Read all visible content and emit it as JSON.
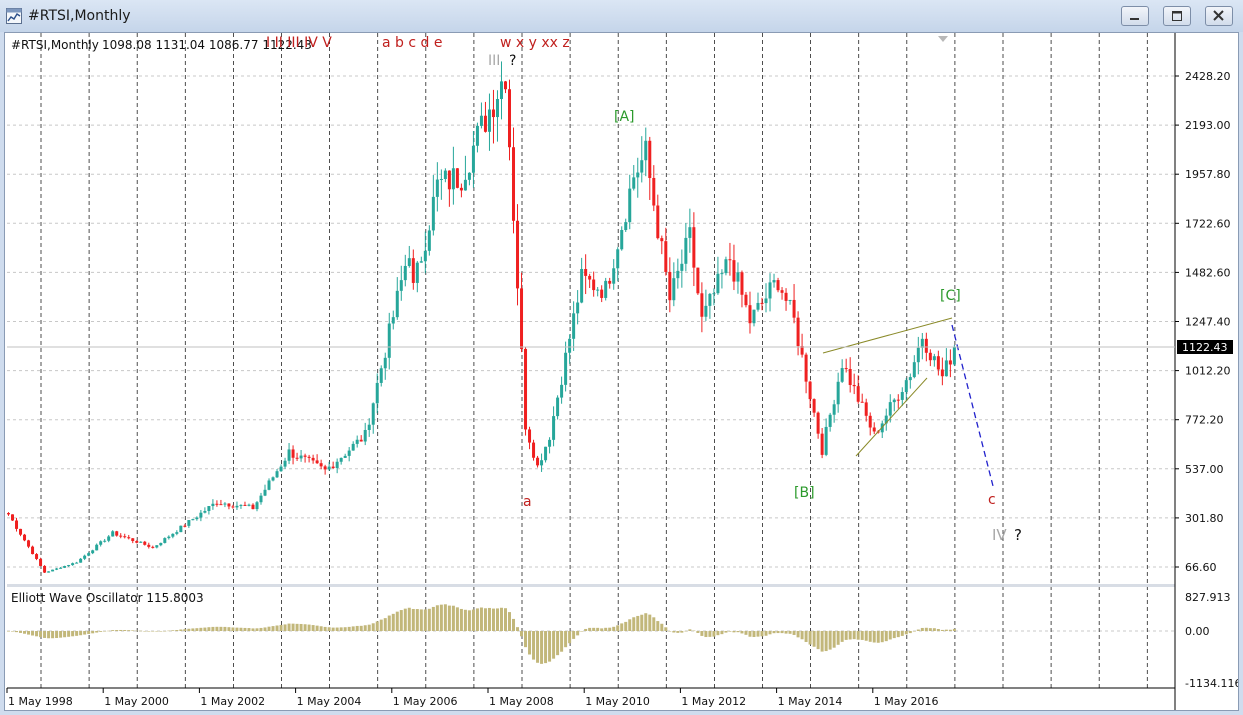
{
  "window": {
    "title": "#RTSI,Monthly",
    "buttons": [
      "minimize",
      "restore",
      "close"
    ]
  },
  "chart_info": {
    "symbol_period": "#RTSI,Monthly",
    "ohlc": "1098.08 1131.04 1086.77 1122.43",
    "current_price": "1122.43"
  },
  "price_axis": {
    "ticks": [
      "2428.20",
      "2193.00",
      "1957.80",
      "1722.60",
      "1482.60",
      "1247.40",
      "1012.20",
      "772.20",
      "537.00",
      "301.80",
      "66.60"
    ]
  },
  "indicator": {
    "label": "Elliott Wave Oscillator 115.8003",
    "ticks": [
      "827.913",
      "0.00",
      "-1134.116"
    ]
  },
  "time_axis": {
    "labels": [
      "1 May 1998",
      "1 May 2000",
      "1 May 2002",
      "1 May 2004",
      "1 May 2006",
      "1 May 2008",
      "1 May 2010",
      "1 May 2012",
      "1 May 2014",
      "1 May 2016"
    ]
  },
  "wave_labels": {
    "top_red_roman": "I II III IV V",
    "top_abcde": "a b c d e",
    "top_wxyxxz": "w x y xx z",
    "wave_III": "III",
    "question": "?",
    "wave_A": "[A]",
    "wave_B": "[B]",
    "wave_C": "[C]",
    "wave_a": "a",
    "wave_c": "c",
    "wave_IV": "IV",
    "question2": "?"
  },
  "colors": {
    "bull": "#26a69a",
    "bear": "#ef2020",
    "wave_green": "#2c9a2c",
    "wave_red": "#c0201e",
    "wave_gray": "#a8a8a8",
    "oscillator": "#c2b77a",
    "channel": "#8a8a28",
    "projection": "#2222cc"
  },
  "chart_data": {
    "type": "candlestick",
    "anchors": [
      [
        "1998-01",
        320
      ],
      [
        "1998-10",
        40
      ],
      [
        "1999-06",
        90
      ],
      [
        "2000-03",
        230
      ],
      [
        "2001-01",
        160
      ],
      [
        "2002-05",
        380
      ],
      [
        "2003-02",
        350
      ],
      [
        "2003-11",
        620
      ],
      [
        "2004-08",
        530
      ],
      [
        "2005-06",
        700
      ],
      [
        "2006-05",
        1600
      ],
      [
        "2006-06",
        1400
      ],
      [
        "2006-12",
        1900
      ],
      [
        "2007-06",
        1950
      ],
      [
        "2008-05",
        2450
      ],
      [
        "2008-10",
        750
      ],
      [
        "2009-01",
        550
      ],
      [
        "2009-04",
        700
      ],
      [
        "2009-12",
        1450
      ],
      [
        "2010-06",
        1400
      ],
      [
        "2011-01",
        1950
      ],
      [
        "2011-04",
        2050
      ],
      [
        "2011-10",
        1350
      ],
      [
        "2012-03",
        1650
      ],
      [
        "2012-06",
        1250
      ],
      [
        "2013-01",
        1550
      ],
      [
        "2013-06",
        1250
      ],
      [
        "2014-01",
        1450
      ],
      [
        "2014-05",
        1250
      ],
      [
        "2014-12",
        630
      ],
      [
        "2015-05",
        1050
      ],
      [
        "2016-01",
        700
      ],
      [
        "2016-10",
        1000
      ],
      [
        "2017-01",
        1180
      ],
      [
        "2017-06",
        980
      ],
      [
        "2017-09",
        1122
      ]
    ],
    "series": [
      {
        "name": "Elliott Wave Oscillator",
        "type": "histogram"
      }
    ]
  }
}
